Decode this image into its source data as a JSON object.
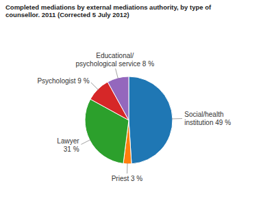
{
  "chart_data": {
    "type": "pie",
    "title": "Completed mediations by external mediations authority, by type of\ncounsellor. 2011 (Corrected 5 July 2012)",
    "categories": [
      "Social/health\ninstitution 49 %",
      "Priest 3 %",
      "Lawyer\n31 %",
      "Psychologist 9 %",
      "Educational/\npsychological service 8 %"
    ],
    "values": [
      49,
      3,
      31,
      9,
      8
    ]
  }
}
